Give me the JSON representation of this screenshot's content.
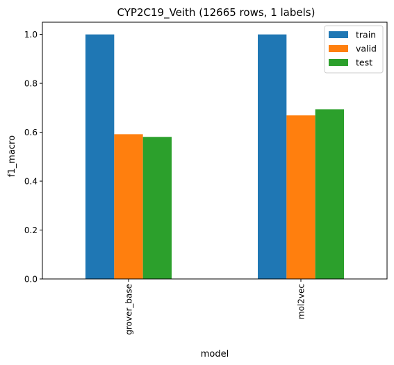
{
  "chart_data": {
    "type": "bar",
    "title": "CYP2C19_Veith (12665 rows, 1 labels)",
    "xlabel": "model",
    "ylabel": "f1_macro",
    "categories": [
      "grover_base",
      "mol2vec"
    ],
    "series": [
      {
        "name": "train",
        "color": "#1f77b4",
        "values": [
          1.0,
          1.0
        ]
      },
      {
        "name": "valid",
        "color": "#ff7f0e",
        "values": [
          0.592,
          0.669
        ]
      },
      {
        "name": "test",
        "color": "#2ca02c",
        "values": [
          0.581,
          0.694
        ]
      }
    ],
    "ylim": [
      0,
      1.05
    ],
    "yticks": [
      "0.0",
      "0.2",
      "0.4",
      "0.6",
      "0.8",
      "1.0"
    ],
    "grid": false,
    "legend_position": "top-right"
  }
}
